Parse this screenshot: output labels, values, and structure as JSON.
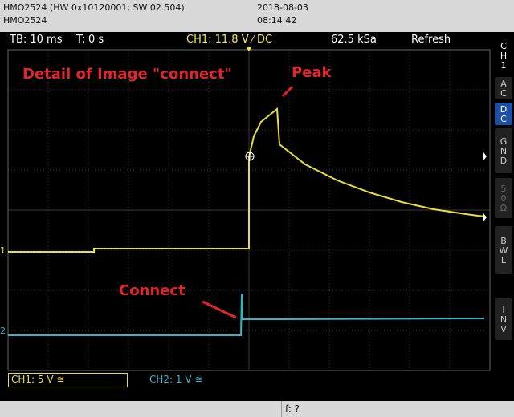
{
  "header": {
    "device": "HMO2524 (HW 0x10120001; SW 02.504)",
    "model": "HMO2524",
    "date": "2018-08-03",
    "time": "08:14:42"
  },
  "status": {
    "timebase": "TB: 10 ms",
    "trigger_time": "T: 0 s",
    "trigger": "CH1: 11.8 V ⁄ DC",
    "sample_rate": "62.5 kSa",
    "mode": "Refresh"
  },
  "side_menu": {
    "channel": "CH1",
    "buttons": [
      "AC",
      "DC",
      "GND",
      "50Ω",
      "BWL",
      "INV"
    ]
  },
  "annotations": {
    "title": "Detail of Image \"connect\"",
    "peak": "Peak",
    "connect": "Connect"
  },
  "markers": {
    "ch1": "1",
    "ch2": "2"
  },
  "footer": {
    "ch1": "CH1: 5 V ≅",
    "ch2": "CH2: 1 V ≅",
    "frequency": "f: ?"
  }
}
